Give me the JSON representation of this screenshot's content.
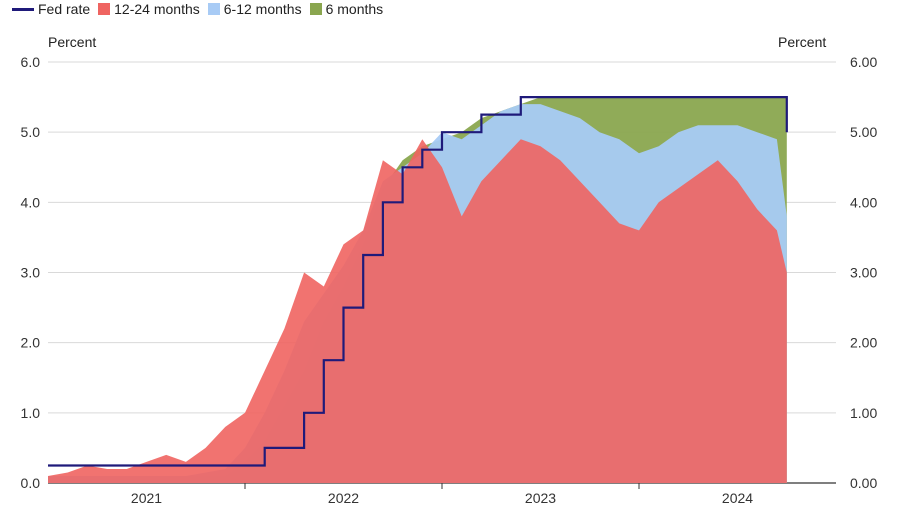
{
  "chart_data": {
    "type": "area",
    "title": "",
    "ylabel_left": "Percent",
    "ylabel_right": "Percent",
    "ylim": [
      0,
      6
    ],
    "yticks_left": [
      "0.0",
      "1.0",
      "2.0",
      "3.0",
      "4.0",
      "5.0",
      "6.0"
    ],
    "yticks_right": [
      "0.00",
      "1.00",
      "2.00",
      "3.00",
      "4.00",
      "5.00",
      "6.00"
    ],
    "xlim": [
      2020.5,
      2024.5
    ],
    "x_categories": [
      {
        "label": "2021",
        "center": 2021.0
      },
      {
        "label": "2022",
        "center": 2022.0
      },
      {
        "label": "2023",
        "center": 2023.0
      },
      {
        "label": "2024",
        "center": 2024.0
      }
    ],
    "x_boundaries": [
      2021.5,
      2022.5,
      2023.5
    ],
    "grid": "horizontal",
    "legend_position": "top-left",
    "colors": {
      "fed": "#1f1a7a",
      "s12_24": "#ef6461",
      "s6_12": "#a8cbf5",
      "s6": "#8aa64f"
    },
    "legend": [
      {
        "key": "fed",
        "label": "Fed rate",
        "kind": "line"
      },
      {
        "key": "s12_24",
        "label": "12-24 months",
        "kind": "box"
      },
      {
        "key": "s6_12",
        "label": "6-12 months",
        "kind": "box"
      },
      {
        "key": "s6",
        "label": "6 months",
        "kind": "box"
      }
    ],
    "x": [
      2020.5,
      2020.6,
      2020.7,
      2020.8,
      2020.9,
      2021.0,
      2021.1,
      2021.2,
      2021.3,
      2021.4,
      2021.5,
      2021.6,
      2021.7,
      2021.8,
      2021.9,
      2022.0,
      2022.1,
      2022.2,
      2022.3,
      2022.4,
      2022.5,
      2022.6,
      2022.7,
      2022.8,
      2022.9,
      2023.0,
      2023.1,
      2023.2,
      2023.3,
      2023.4,
      2023.5,
      2023.6,
      2023.7,
      2023.8,
      2023.9,
      2024.0,
      2024.1,
      2024.2,
      2024.25
    ],
    "series": [
      {
        "key": "fed",
        "name": "Fed rate",
        "values": [
          0.25,
          0.25,
          0.25,
          0.25,
          0.25,
          0.25,
          0.25,
          0.25,
          0.25,
          0.25,
          0.25,
          0.5,
          0.5,
          1.0,
          1.75,
          2.5,
          3.25,
          4.0,
          4.5,
          4.75,
          5.0,
          5.0,
          5.25,
          5.25,
          5.5,
          5.5,
          5.5,
          5.5,
          5.5,
          5.5,
          5.5,
          5.5,
          5.5,
          5.5,
          5.5,
          5.5,
          5.5,
          5.5,
          5.0
        ]
      },
      {
        "key": "s6",
        "name": "6 months",
        "values": [
          0.1,
          0.1,
          0.1,
          0.1,
          0.1,
          0.1,
          0.1,
          0.1,
          0.1,
          0.1,
          0.3,
          0.6,
          1.1,
          1.6,
          2.3,
          2.8,
          3.4,
          4.2,
          4.6,
          4.8,
          4.9,
          5.0,
          5.2,
          5.3,
          5.4,
          5.5,
          5.5,
          5.5,
          5.5,
          5.5,
          5.5,
          5.5,
          5.5,
          5.5,
          5.5,
          5.5,
          5.5,
          5.5,
          5.5
        ]
      },
      {
        "key": "s6_12",
        "name": "6-12 months",
        "values": [
          0.1,
          0.1,
          0.1,
          0.1,
          0.1,
          0.1,
          0.1,
          0.1,
          0.15,
          0.2,
          0.5,
          1.0,
          1.6,
          2.3,
          2.7,
          3.1,
          3.6,
          4.3,
          4.5,
          4.7,
          5.0,
          4.9,
          5.1,
          5.3,
          5.4,
          5.4,
          5.3,
          5.2,
          5.0,
          4.9,
          4.7,
          4.8,
          5.0,
          5.1,
          5.1,
          5.1,
          5.0,
          4.9,
          3.8
        ]
      },
      {
        "key": "s12_24",
        "name": "12-24 months",
        "values": [
          0.1,
          0.15,
          0.25,
          0.2,
          0.2,
          0.3,
          0.4,
          0.3,
          0.5,
          0.8,
          1.0,
          1.6,
          2.2,
          3.0,
          2.8,
          3.4,
          3.6,
          4.6,
          4.4,
          4.9,
          4.5,
          3.8,
          4.3,
          4.6,
          4.9,
          4.8,
          4.6,
          4.3,
          4.0,
          3.7,
          3.6,
          4.0,
          4.2,
          4.4,
          4.6,
          4.3,
          3.9,
          3.6,
          3.0
        ]
      }
    ]
  }
}
